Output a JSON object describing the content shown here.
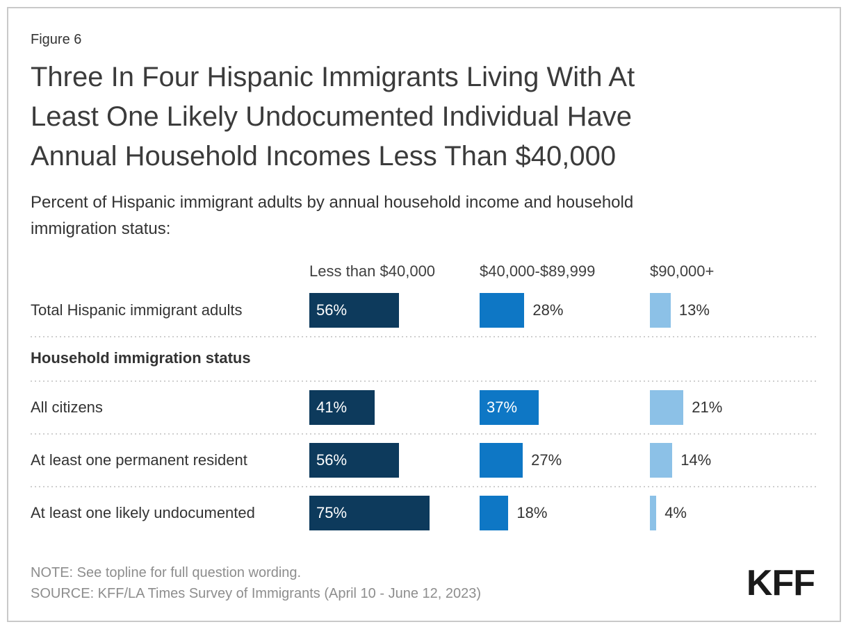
{
  "figure_label": "Figure 6",
  "header": {
    "title_lines": [
      "Three In Four Hispanic Immigrants Living With At",
      "Least One Likely Undocumented Individual Have",
      "Annual Household Incomes Less Than $40,000"
    ],
    "subtitle_lines": [
      "Percent of Hispanic immigrant adults by annual household income and household",
      "immigration status:"
    ]
  },
  "chart_data": {
    "type": "bar",
    "orientation": "horizontal",
    "title": "Three In Four Hispanic Immigrants Living With At Least One Likely Undocumented Individual Have Annual Household Incomes Less Than $40,000",
    "subtitle": "Percent of Hispanic immigrant adults by annual household income and household immigration status:",
    "unit": "%",
    "categories": [
      "Less than $40,000",
      "$40,000-$89,999",
      "$90,000+"
    ],
    "colors": [
      "#0d3a5c",
      "#0e77c5",
      "#8cc1e7"
    ],
    "section_header": "Household immigration status",
    "rows": [
      {
        "label": "Total Hispanic immigrant adults",
        "values": [
          56,
          28,
          13
        ]
      },
      {
        "label": "All citizens",
        "values": [
          41,
          37,
          21
        ]
      },
      {
        "label": "At least one permanent resident",
        "values": [
          56,
          27,
          14
        ]
      },
      {
        "label": "At least one likely undocumented",
        "values": [
          75,
          18,
          4
        ]
      }
    ]
  },
  "footer": {
    "note": "NOTE: See topline for full question wording.",
    "source": "SOURCE: KFF/LA Times Survey of Immigrants (April 10 - June 12, 2023)",
    "logo_text": "KFF"
  }
}
